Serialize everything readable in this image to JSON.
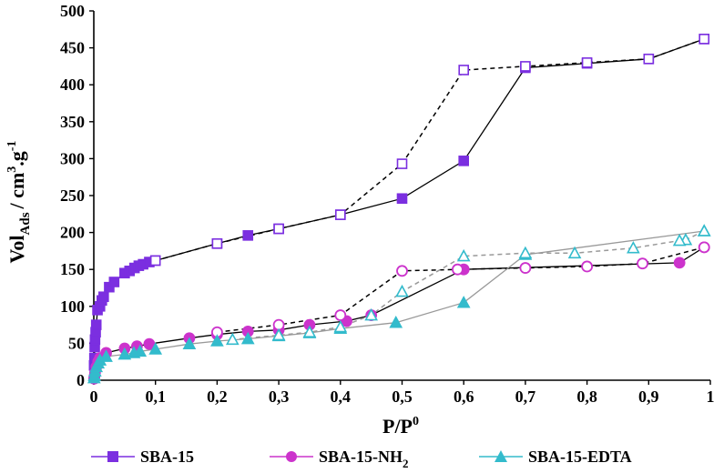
{
  "chart_data": {
    "type": "scatter",
    "xlabel": "P/P",
    "xlabel_sup": "0",
    "ylabel_main": "Vol",
    "ylabel_sub": "Ads",
    "ylabel_rest": "/ cm",
    "ylabel_sup1": "3",
    "ylabel_mid": ".g",
    "ylabel_sup2": "-1",
    "xlim": [
      0,
      1
    ],
    "ylim": [
      0,
      500
    ],
    "x_ticks": [
      "0",
      "0,1",
      "0,2",
      "0,3",
      "0,4",
      "0,5",
      "0,6",
      "0,7",
      "0,8",
      "0,9",
      "1"
    ],
    "y_ticks": [
      "0",
      "50",
      "100",
      "150",
      "200",
      "250",
      "300",
      "350",
      "400",
      "450",
      "500"
    ],
    "grid": false,
    "legend_position": "bottom",
    "series": [
      {
        "name": "SBA-15",
        "legend_sub": "",
        "color": "#7B2FE0",
        "marker": "square",
        "adsorption": [
          [
            0.0005,
            20
          ],
          [
            0.001,
            30
          ],
          [
            0.0015,
            45
          ],
          [
            0.002,
            55
          ],
          [
            0.003,
            65
          ],
          [
            0.004,
            75
          ],
          [
            0.006,
            95
          ],
          [
            0.01,
            100
          ],
          [
            0.013,
            108
          ],
          [
            0.016,
            113
          ],
          [
            0.025,
            126
          ],
          [
            0.033,
            133
          ],
          [
            0.05,
            145
          ],
          [
            0.058,
            148
          ],
          [
            0.066,
            152
          ],
          [
            0.073,
            155
          ],
          [
            0.08,
            157
          ],
          [
            0.09,
            160
          ],
          [
            0.1,
            162
          ],
          [
            0.2,
            185
          ],
          [
            0.25,
            196
          ],
          [
            0.3,
            205
          ],
          [
            0.4,
            224
          ],
          [
            0.5,
            246
          ],
          [
            0.6,
            297
          ],
          [
            0.7,
            423
          ],
          [
            0.8,
            429
          ],
          [
            0.9,
            435
          ],
          [
            0.99,
            462
          ]
        ],
        "desorption": [
          [
            0.99,
            462
          ],
          [
            0.9,
            435
          ],
          [
            0.8,
            430
          ],
          [
            0.7,
            425
          ],
          [
            0.6,
            420
          ],
          [
            0.5,
            293
          ],
          [
            0.4,
            224
          ],
          [
            0.3,
            205
          ],
          [
            0.2,
            185
          ],
          [
            0.1,
            162
          ]
        ]
      },
      {
        "name": "SBA-15-NH",
        "legend_sub": "2",
        "color": "#CC33CC",
        "marker": "circle",
        "adsorption": [
          [
            0.0005,
            2
          ],
          [
            0.001,
            5
          ],
          [
            0.002,
            10
          ],
          [
            0.004,
            18
          ],
          [
            0.007,
            25
          ],
          [
            0.01,
            30
          ],
          [
            0.02,
            37
          ],
          [
            0.05,
            43
          ],
          [
            0.07,
            46
          ],
          [
            0.09,
            49
          ],
          [
            0.155,
            57
          ],
          [
            0.2,
            62
          ],
          [
            0.25,
            66
          ],
          [
            0.3,
            68
          ],
          [
            0.35,
            75
          ],
          [
            0.41,
            80
          ],
          [
            0.45,
            88
          ],
          [
            0.6,
            150
          ],
          [
            0.95,
            159
          ],
          [
            0.99,
            180
          ]
        ],
        "desorption": [
          [
            0.99,
            180
          ],
          [
            0.89,
            158
          ],
          [
            0.8,
            154
          ],
          [
            0.7,
            152
          ],
          [
            0.59,
            150
          ],
          [
            0.5,
            148
          ],
          [
            0.4,
            88
          ],
          [
            0.3,
            75
          ],
          [
            0.2,
            65
          ]
        ]
      },
      {
        "name": "SBA-15-EDTA",
        "legend_sub": "",
        "color": "#33BBCC",
        "marker": "triangle",
        "adsorption": [
          [
            0.0005,
            3
          ],
          [
            0.001,
            6
          ],
          [
            0.002,
            12
          ],
          [
            0.004,
            18
          ],
          [
            0.007,
            23
          ],
          [
            0.01,
            27
          ],
          [
            0.02,
            32
          ],
          [
            0.05,
            35
          ],
          [
            0.065,
            37
          ],
          [
            0.075,
            39
          ],
          [
            0.1,
            42
          ],
          [
            0.155,
            49
          ],
          [
            0.2,
            53
          ],
          [
            0.25,
            56
          ],
          [
            0.3,
            60
          ],
          [
            0.35,
            64
          ],
          [
            0.4,
            70
          ],
          [
            0.49,
            78
          ],
          [
            0.6,
            105
          ],
          [
            0.7,
            170
          ],
          [
            0.99,
            202
          ]
        ],
        "desorption": [
          [
            0.99,
            202
          ],
          [
            0.96,
            190
          ],
          [
            0.95,
            189
          ],
          [
            0.875,
            179
          ],
          [
            0.78,
            172
          ],
          [
            0.7,
            172
          ],
          [
            0.6,
            168
          ],
          [
            0.5,
            120
          ],
          [
            0.45,
            88
          ],
          [
            0.4,
            72
          ],
          [
            0.35,
            65
          ],
          [
            0.3,
            61
          ],
          [
            0.225,
            55
          ]
        ]
      }
    ]
  }
}
